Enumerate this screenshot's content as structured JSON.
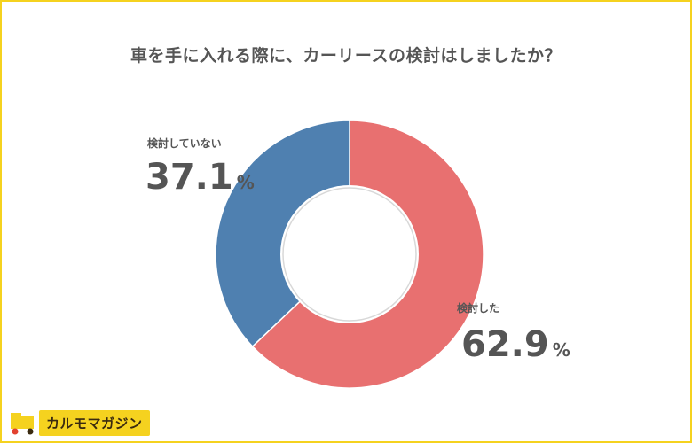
{
  "title": "車を手に入れる際に、カーリースの検討はしましたか？",
  "chart_data": {
    "type": "pie",
    "title": "車を手に入れる際に、カーリースの検討はしましたか？",
    "series": [
      {
        "name": "検討した",
        "value": 62.9,
        "value_label": "62.9",
        "unit": "%",
        "color": "#e87070"
      },
      {
        "name": "検討していない",
        "value": 37.1,
        "value_label": "37.1",
        "unit": "%",
        "color": "#4f80b0"
      }
    ],
    "donut": true,
    "legend": "direct-labels"
  },
  "logo": {
    "text": "カルモマガジン",
    "icon": "car-logo-icon",
    "color": "#f5d21f"
  }
}
